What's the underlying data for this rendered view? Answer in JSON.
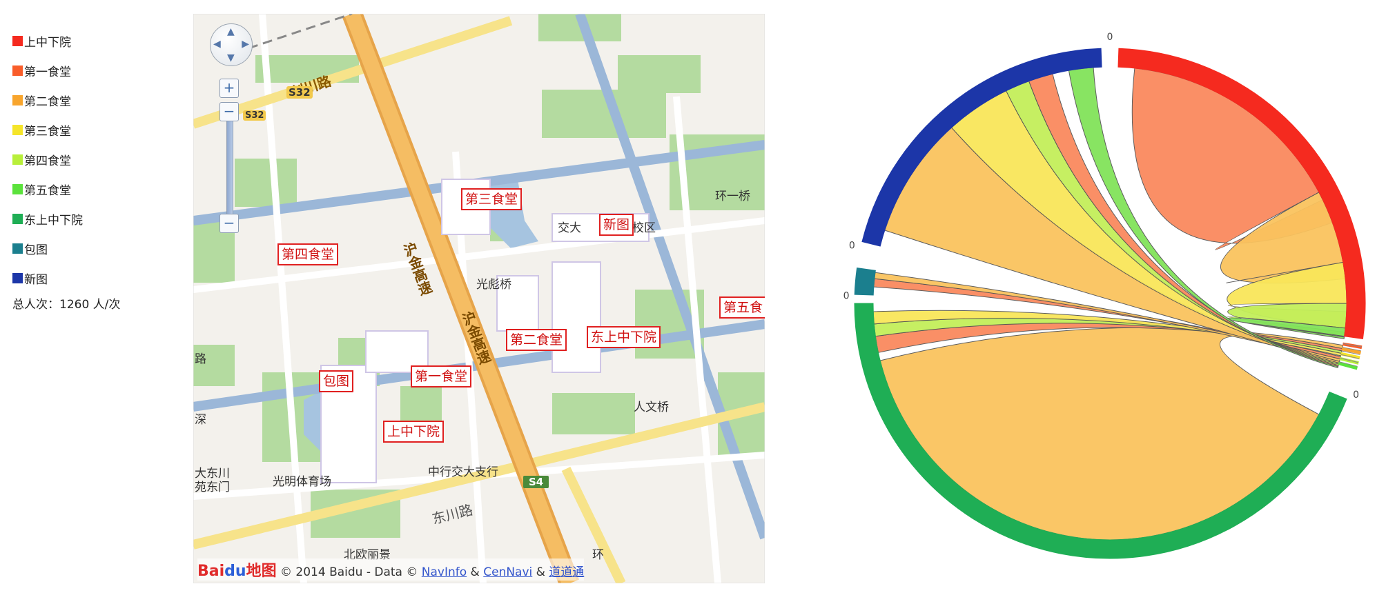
{
  "legend": {
    "items": [
      {
        "label": "上中下院",
        "color": "#f52a1f"
      },
      {
        "label": "第一食堂",
        "color": "#f95d2a"
      },
      {
        "label": "第二食堂",
        "color": "#f8a52d"
      },
      {
        "label": "第三食堂",
        "color": "#f5e52a"
      },
      {
        "label": "第四食堂",
        "color": "#b8ef3a"
      },
      {
        "label": "第五食堂",
        "color": "#5be23c"
      },
      {
        "label": "东上中下院",
        "color": "#1fae55"
      },
      {
        "label": "包图",
        "color": "#1b7f8e"
      },
      {
        "label": "新图",
        "color": "#1c36a8"
      }
    ],
    "total": "总人次：1260 人/次"
  },
  "map": {
    "pins": {
      "canteen3": "第三食堂",
      "newlib": "新图",
      "canteen4": "第四食堂",
      "canteen5": "第五食",
      "canteen2": "第二食堂",
      "eastupper": "东上中下院",
      "canteen1": "第一食堂",
      "baolib": "包图",
      "upper": "上中下院"
    },
    "labels": {
      "jianchuan": "剑川路",
      "s32": "S32",
      "s32b": "S32",
      "hujin1": "沪金高速",
      "hujin2": "沪金高速",
      "guangbiao": "光彪桥",
      "jiaoda": "交大",
      "xiaoqu": "校区",
      "huanyi": "环一桥",
      "renwen": "人文桥",
      "dongchuan1": "大东川",
      "dongchuan2": "苑东门",
      "guangming": "光明体育场",
      "zhonghang": "中行交大支行",
      "s4": "S4",
      "dongchuanlu": "东川路",
      "beiou": "北欧丽景",
      "huan": "环",
      "sheng": "深",
      "lu": "路"
    },
    "copyright": {
      "logo_a": "Bai",
      "logo_b": "du",
      "logo_c": "地图",
      "text": " © 2014 Baidu - Data © ",
      "navinfo": "NavInfo",
      "amp1": " & ",
      "cennavi": "CenNavi",
      "amp2": " & ",
      "daodao": "道道通"
    }
  },
  "chart_data": {
    "type": "chord",
    "groups": [
      "上中下院",
      "第一食堂",
      "第二食堂",
      "第三食堂",
      "第四食堂",
      "第五食堂",
      "东上中下院",
      "包图",
      "新图"
    ],
    "colors": [
      "#f52a1f",
      "#f95d2a",
      "#f8a52d",
      "#f5e52a",
      "#b8ef3a",
      "#5be23c",
      "#1fae55",
      "#1b7f8e",
      "#1c36a8"
    ],
    "zero_labels": [
      "0",
      "0",
      "0",
      "0"
    ],
    "total": 1260
  }
}
